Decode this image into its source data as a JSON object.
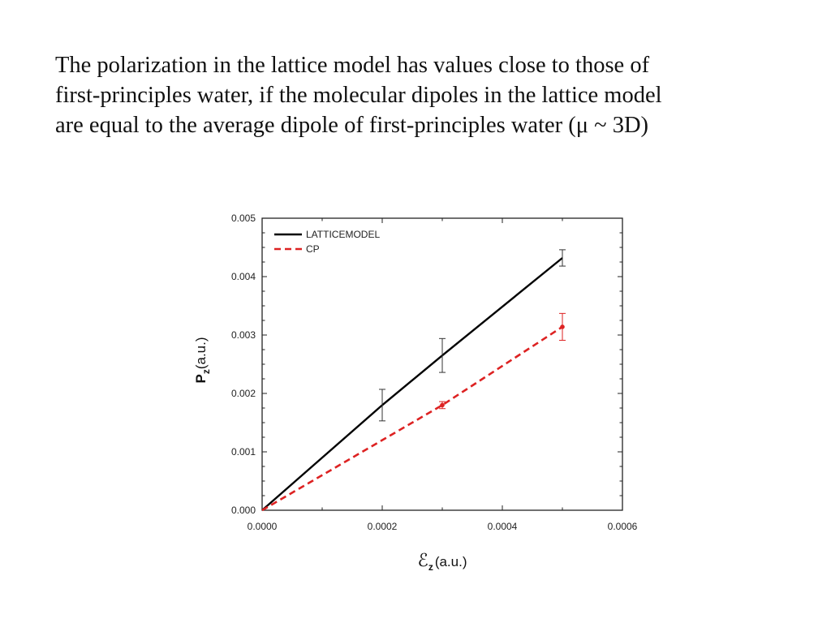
{
  "caption": {
    "line1": "The polarization in the lattice model has values close to those of",
    "line2": "first-principles water, if the molecular dipoles in the lattice model",
    "line3": "are equal to the average dipole of first-principles water (μ ~ 3D)"
  },
  "chart_data": {
    "type": "line",
    "xlim": [
      0,
      0.0006
    ],
    "ylim": [
      0,
      0.005
    ],
    "x_ticks": [
      "0.0000",
      "0.0002",
      "0.0004",
      "0.0006"
    ],
    "y_ticks": [
      "0.000",
      "0.001",
      "0.002",
      "0.003",
      "0.004",
      "0.005"
    ],
    "xlabel": {
      "main": "ℰ",
      "sub": "z",
      "unit": "(a.u.)"
    },
    "ylabel": {
      "main": "P",
      "sub": "z",
      "unit": "(a.u.)"
    },
    "grid": false,
    "legend_position": "top-left",
    "series": [
      {
        "name": "LATTICEMODEL",
        "color": "#000000",
        "dash": "solid",
        "x": [
          0,
          0.0002,
          0.0003,
          0.0005
        ],
        "y": [
          0,
          0.0018,
          0.00265,
          0.00432
        ],
        "yerr": [
          0,
          0.00027,
          0.00029,
          0.00014
        ],
        "markers": false
      },
      {
        "name": "CP",
        "color": "#dd2222",
        "dash": "dashed",
        "x": [
          0,
          0.0003,
          0.0005
        ],
        "y": [
          0,
          0.0018,
          0.00314
        ],
        "yerr": [
          0,
          6e-05,
          0.00023
        ],
        "markers": true
      }
    ]
  }
}
